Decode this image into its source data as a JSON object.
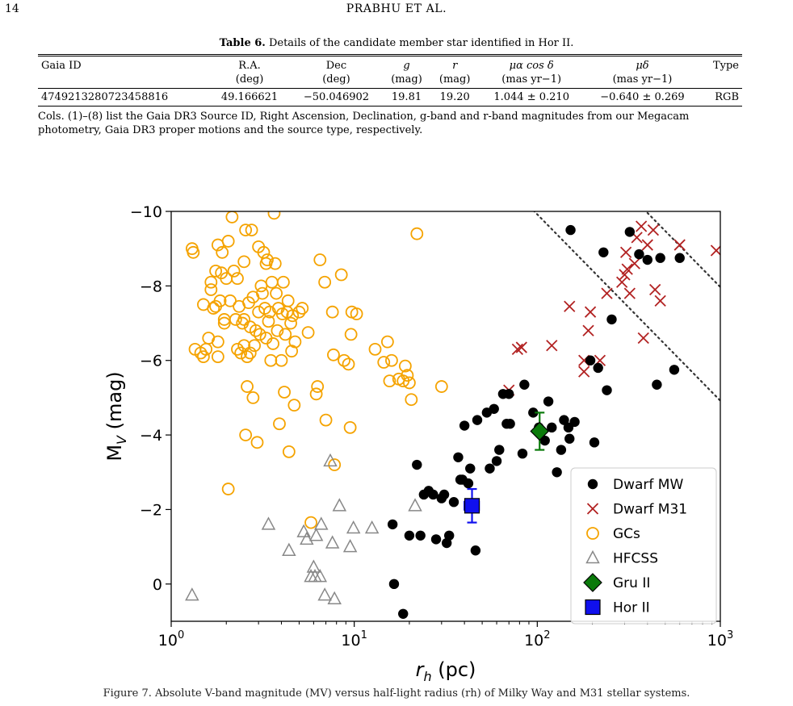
{
  "page": {
    "number": "14",
    "running_head": "PRABHU ET AL."
  },
  "table": {
    "caption_label": "Table 6.",
    "caption_text": " Details of the candidate member star identified in Hor II.",
    "headers": [
      "Gaia ID",
      "R.A.",
      "Dec",
      "g",
      "r",
      "μα cos δ",
      "μδ",
      "Type"
    ],
    "units": [
      "",
      "(deg)",
      "(deg)",
      "(mag)",
      "(mag)",
      "(mas yr−1)",
      "(mas yr−1)",
      ""
    ],
    "rows": [
      [
        "4749213280723458816",
        "49.166621",
        "−50.046902",
        "19.81",
        "19.20",
        "1.044 ± 0.210",
        "−0.640 ± 0.269",
        "RGB"
      ]
    ],
    "note": "Cols. (1)–(8) list the Gaia DR3 Source ID, Right Ascension, Declination, g-band and r-band magnitudes from our Megacam photometry, Gaia DR3 proper motions and the source type, respectively."
  },
  "figure_caption": "Figure 7. Absolute V-band magnitude (MV) versus half-light radius (rh) of Milky Way and M31 stellar systems.",
  "chart_data": {
    "type": "scatter",
    "xlabel": "r_h (pc)",
    "ylabel": "M_V (mag)",
    "xscale": "log",
    "xlim": [
      1,
      1000
    ],
    "ylim": [
      -10,
      1
    ],
    "y_inverted": true,
    "grid": false,
    "legend_position": "lower-right",
    "x_ticks": [
      1,
      10,
      100,
      1000
    ],
    "y_ticks": [
      -10,
      -8,
      -6,
      -4,
      -2,
      0
    ],
    "y_tick_labels": [
      "−10",
      "−8",
      "−6",
      "−4",
      "−2",
      "0"
    ],
    "reference_lines": {
      "style": "dotted",
      "surface_brightness_offsets": [
        19.92,
        22.97,
        25.09,
        26.95,
        29.08,
        30.5
      ]
    },
    "series": [
      {
        "name": "Dwarf MW",
        "marker": "filled-circle",
        "color": "#000000",
        "points": [
          [
            16.2,
            -1.6
          ],
          [
            16.5,
            0.0
          ],
          [
            18.5,
            0.8
          ],
          [
            20.0,
            -1.3
          ],
          [
            22.0,
            -3.2
          ],
          [
            23.0,
            -1.3
          ],
          [
            24.0,
            -2.4
          ],
          [
            25.5,
            -2.5
          ],
          [
            27.0,
            -2.4
          ],
          [
            28.0,
            -1.2
          ],
          [
            30.0,
            -2.3
          ],
          [
            31.0,
            -2.4
          ],
          [
            32.0,
            -1.1
          ],
          [
            33.0,
            -1.3
          ],
          [
            35.0,
            -2.2
          ],
          [
            37.0,
            -3.4
          ],
          [
            38.0,
            -2.8
          ],
          [
            39.0,
            -2.8
          ],
          [
            40.0,
            -4.25
          ],
          [
            42.0,
            -2.7
          ],
          [
            43.0,
            -3.1
          ],
          [
            46.0,
            -0.9
          ],
          [
            47.0,
            -4.4
          ],
          [
            53.0,
            -4.6
          ],
          [
            55.0,
            -3.1
          ],
          [
            58.0,
            -4.7
          ],
          [
            60.0,
            -3.3
          ],
          [
            62.0,
            -3.6
          ],
          [
            65.0,
            -5.1
          ],
          [
            68.0,
            -4.3
          ],
          [
            70.0,
            -5.1
          ],
          [
            71.0,
            -4.3
          ],
          [
            83.0,
            -3.5
          ],
          [
            85.0,
            -5.35
          ],
          [
            95.0,
            -4.6
          ],
          [
            102.0,
            -4.2
          ],
          [
            110.0,
            -3.85
          ],
          [
            115.0,
            -4.9
          ],
          [
            120.0,
            -4.2
          ],
          [
            128.0,
            -3.0
          ],
          [
            135.0,
            -3.6
          ],
          [
            140.0,
            -4.4
          ],
          [
            148.0,
            -4.2
          ],
          [
            150.0,
            -3.9
          ],
          [
            152.0,
            -9.5
          ],
          [
            160.0,
            -4.35
          ],
          [
            195.0,
            -6.0
          ],
          [
            205.0,
            -3.8
          ],
          [
            215.0,
            -5.8
          ],
          [
            230.0,
            -8.9
          ],
          [
            240.0,
            -5.2
          ],
          [
            255.0,
            -7.1
          ],
          [
            320.0,
            -9.45
          ],
          [
            360.0,
            -8.85
          ],
          [
            400.0,
            -8.7
          ],
          [
            450.0,
            -5.35
          ],
          [
            470.0,
            -8.75
          ],
          [
            560.0,
            -5.75
          ],
          [
            600.0,
            -8.75
          ]
        ]
      },
      {
        "name": "Dwarf M31",
        "marker": "x",
        "color": "#b22222",
        "points": [
          [
            70.0,
            -5.2
          ],
          [
            78.0,
            -6.3
          ],
          [
            82.0,
            -6.35
          ],
          [
            120.0,
            -6.4
          ],
          [
            150.0,
            -7.45
          ],
          [
            180.0,
            -6.0
          ],
          [
            180.0,
            -5.7
          ],
          [
            190.0,
            -6.8
          ],
          [
            195.0,
            -7.3
          ],
          [
            220.0,
            -6.0
          ],
          [
            240.0,
            -7.8
          ],
          [
            290.0,
            -8.1
          ],
          [
            300.0,
            -8.3
          ],
          [
            305.0,
            -8.9
          ],
          [
            310.0,
            -8.45
          ],
          [
            320.0,
            -7.8
          ],
          [
            340.0,
            -8.6
          ],
          [
            350.0,
            -9.3
          ],
          [
            370.0,
            -9.6
          ],
          [
            380.0,
            -6.6
          ],
          [
            400.0,
            -9.1
          ],
          [
            430.0,
            -9.5
          ],
          [
            440.0,
            -7.9
          ],
          [
            470.0,
            -7.6
          ],
          [
            600.0,
            -9.1
          ],
          [
            950.0,
            -8.95
          ]
        ]
      },
      {
        "name": "GCs",
        "marker": "open-circle",
        "color": "#f5a300",
        "points": [
          [
            1.3,
            -9.0
          ],
          [
            1.32,
            -8.9
          ],
          [
            1.35,
            -6.3
          ],
          [
            1.45,
            -6.2
          ],
          [
            1.5,
            -6.1
          ],
          [
            1.5,
            -7.5
          ],
          [
            1.55,
            -6.3
          ],
          [
            1.6,
            -6.6
          ],
          [
            1.65,
            -7.9
          ],
          [
            1.65,
            -8.1
          ],
          [
            1.7,
            -7.4
          ],
          [
            1.75,
            -7.45
          ],
          [
            1.75,
            -8.4
          ],
          [
            1.8,
            -9.1
          ],
          [
            1.8,
            -6.5
          ],
          [
            1.8,
            -6.1
          ],
          [
            1.85,
            -7.6
          ],
          [
            1.88,
            -8.35
          ],
          [
            1.9,
            -8.9
          ],
          [
            1.95,
            -7.0
          ],
          [
            1.95,
            -7.1
          ],
          [
            2.0,
            -8.2
          ],
          [
            2.05,
            -9.2
          ],
          [
            2.05,
            -2.55
          ],
          [
            2.1,
            -7.6
          ],
          [
            2.15,
            -9.85
          ],
          [
            2.2,
            -8.4
          ],
          [
            2.25,
            -7.1
          ],
          [
            2.3,
            -6.3
          ],
          [
            2.3,
            -8.2
          ],
          [
            2.35,
            -7.45
          ],
          [
            2.4,
            -6.2
          ],
          [
            2.45,
            -7.0
          ],
          [
            2.5,
            -8.65
          ],
          [
            2.5,
            -7.1
          ],
          [
            2.5,
            -6.4
          ],
          [
            2.55,
            -9.5
          ],
          [
            2.55,
            -4.0
          ],
          [
            2.6,
            -5.3
          ],
          [
            2.6,
            -6.1
          ],
          [
            2.65,
            -7.55
          ],
          [
            2.7,
            -6.2
          ],
          [
            2.7,
            -6.9
          ],
          [
            2.75,
            -9.5
          ],
          [
            2.8,
            -7.7
          ],
          [
            2.8,
            -5.0
          ],
          [
            2.85,
            -6.4
          ],
          [
            2.9,
            -6.8
          ],
          [
            2.95,
            -3.8
          ],
          [
            3.0,
            -7.3
          ],
          [
            3.0,
            -9.05
          ],
          [
            3.05,
            -6.7
          ],
          [
            3.1,
            -8.0
          ],
          [
            3.15,
            -7.8
          ],
          [
            3.2,
            -8.9
          ],
          [
            3.25,
            -7.4
          ],
          [
            3.3,
            -8.6
          ],
          [
            3.3,
            -6.6
          ],
          [
            3.35,
            -8.7
          ],
          [
            3.4,
            -7.05
          ],
          [
            3.45,
            -7.3
          ],
          [
            3.5,
            -6.0
          ],
          [
            3.55,
            -8.1
          ],
          [
            3.6,
            -6.45
          ],
          [
            3.65,
            -9.95
          ],
          [
            3.7,
            -8.6
          ],
          [
            3.75,
            -7.8
          ],
          [
            3.8,
            -6.8
          ],
          [
            3.85,
            -7.4
          ],
          [
            3.9,
            -4.3
          ],
          [
            4.0,
            -6.0
          ],
          [
            4.05,
            -7.25
          ],
          [
            4.1,
            -8.1
          ],
          [
            4.15,
            -5.15
          ],
          [
            4.2,
            -6.7
          ],
          [
            4.3,
            -7.3
          ],
          [
            4.35,
            -7.6
          ],
          [
            4.4,
            -3.55
          ],
          [
            4.5,
            -7.0
          ],
          [
            4.55,
            -6.25
          ],
          [
            4.6,
            -7.2
          ],
          [
            4.7,
            -4.8
          ],
          [
            4.75,
            -6.5
          ],
          [
            5.0,
            -7.3
          ],
          [
            5.2,
            -7.4
          ],
          [
            5.6,
            -6.75
          ],
          [
            5.8,
            -1.65
          ],
          [
            6.2,
            -5.1
          ],
          [
            6.3,
            -5.3
          ],
          [
            6.5,
            -8.7
          ],
          [
            6.9,
            -8.1
          ],
          [
            7.0,
            -4.4
          ],
          [
            7.6,
            -7.3
          ],
          [
            7.7,
            -6.15
          ],
          [
            7.8,
            -3.2
          ],
          [
            8.5,
            -8.3
          ],
          [
            8.8,
            -6.0
          ],
          [
            9.3,
            -5.9
          ],
          [
            9.5,
            -4.2
          ],
          [
            9.6,
            -6.7
          ],
          [
            9.7,
            -7.3
          ],
          [
            10.3,
            -7.25
          ],
          [
            13.0,
            -6.3
          ],
          [
            14.5,
            -5.95
          ],
          [
            15.2,
            -6.5
          ],
          [
            15.6,
            -5.45
          ],
          [
            16.0,
            -6.0
          ],
          [
            17.5,
            -5.5
          ],
          [
            18.5,
            -5.45
          ],
          [
            19.0,
            -5.85
          ],
          [
            19.5,
            -5.6
          ],
          [
            20.0,
            -5.4
          ],
          [
            20.5,
            -4.95
          ],
          [
            22.0,
            -9.4
          ],
          [
            30.0,
            -5.3
          ]
        ]
      },
      {
        "name": "HFCSS",
        "marker": "open-triangle",
        "color": "#888888",
        "points": [
          [
            1.3,
            0.3
          ],
          [
            3.4,
            -1.6
          ],
          [
            4.4,
            -0.9
          ],
          [
            5.3,
            -1.4
          ],
          [
            5.5,
            -1.2
          ],
          [
            5.8,
            -0.2
          ],
          [
            6.0,
            -0.45
          ],
          [
            6.1,
            -0.2
          ],
          [
            6.2,
            -1.3
          ],
          [
            6.5,
            -0.2
          ],
          [
            6.6,
            -1.6
          ],
          [
            6.9,
            0.3
          ],
          [
            7.4,
            -3.3
          ],
          [
            7.6,
            -1.1
          ],
          [
            7.8,
            0.4
          ],
          [
            8.3,
            -2.1
          ],
          [
            9.5,
            -1.0
          ],
          [
            9.9,
            -1.5
          ],
          [
            12.5,
            -1.5
          ],
          [
            21.5,
            -2.1
          ]
        ]
      },
      {
        "name": "Gru II",
        "marker": "diamond",
        "color": "#0b7a0b",
        "edge_color": "#000000",
        "points": [
          [
            103.0,
            -4.1
          ]
        ],
        "yerr": [
          0.5
        ]
      },
      {
        "name": "Hor II",
        "marker": "square",
        "color": "#1010ee",
        "edge_color": "#000000",
        "points": [
          [
            44.0,
            -2.1
          ]
        ],
        "xerr": [
          4.0
        ],
        "yerr": [
          0.45
        ]
      }
    ]
  }
}
